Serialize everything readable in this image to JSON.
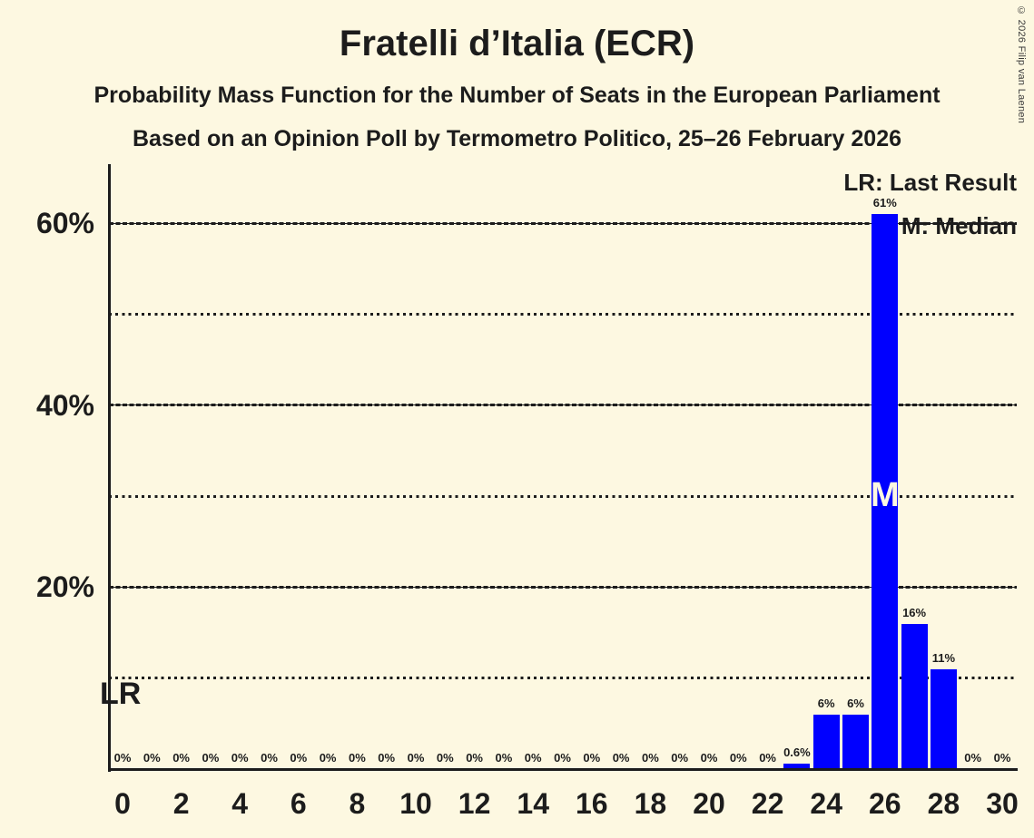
{
  "title": "Fratelli d’Italia (ECR)",
  "subtitle": "Probability Mass Function for the Number of Seats in the European Parliament",
  "poll_info": "Based on an Opinion Poll by Termometro Politico, 25–26 February 2026",
  "copyright": "© 2026 Filip van Laenen",
  "legend": {
    "last_result": "LR: Last Result",
    "median": "M: Median"
  },
  "annotations": {
    "last_result_marker": "LR",
    "median_marker": "M"
  },
  "colors": {
    "background": "#FDF8E1",
    "bar": "#0000FF",
    "text": "#1C1C1C"
  },
  "chart_data": {
    "type": "bar",
    "title": "Fratelli d’Italia (ECR)",
    "x": [
      0,
      1,
      2,
      3,
      4,
      5,
      6,
      7,
      8,
      9,
      10,
      11,
      12,
      13,
      14,
      15,
      16,
      17,
      18,
      19,
      20,
      21,
      22,
      23,
      24,
      25,
      26,
      27,
      28,
      29,
      30
    ],
    "values": [
      0,
      0,
      0,
      0,
      0,
      0,
      0,
      0,
      0,
      0,
      0,
      0,
      0,
      0,
      0,
      0,
      0,
      0,
      0,
      0,
      0,
      0,
      0,
      0.6,
      6,
      6,
      61,
      16,
      11,
      0,
      0
    ],
    "bar_labels": [
      "0%",
      "0%",
      "0%",
      "0%",
      "0%",
      "0%",
      "0%",
      "0%",
      "0%",
      "0%",
      "0%",
      "0%",
      "0%",
      "0%",
      "0%",
      "0%",
      "0%",
      "0%",
      "0%",
      "0%",
      "0%",
      "0%",
      "0%",
      "0.6%",
      "6%",
      "6%",
      "61%",
      "16%",
      "11%",
      "0%",
      "0%"
    ],
    "x_tick_labels": [
      "0",
      "2",
      "4",
      "6",
      "8",
      "10",
      "12",
      "14",
      "16",
      "18",
      "20",
      "22",
      "24",
      "26",
      "28",
      "30"
    ],
    "x_tick_step": 2,
    "y_ticks": [
      {
        "value": 20,
        "label": "20%"
      },
      {
        "value": 40,
        "label": "40%"
      },
      {
        "value": 60,
        "label": "60%"
      }
    ],
    "y_gridlines_major": [
      20,
      40,
      60
    ],
    "y_gridlines_minor": [
      10,
      30,
      50
    ],
    "ylim": [
      0,
      66.5
    ],
    "median_x": 26,
    "grid": "horizontal",
    "legend_position": "top-right"
  }
}
